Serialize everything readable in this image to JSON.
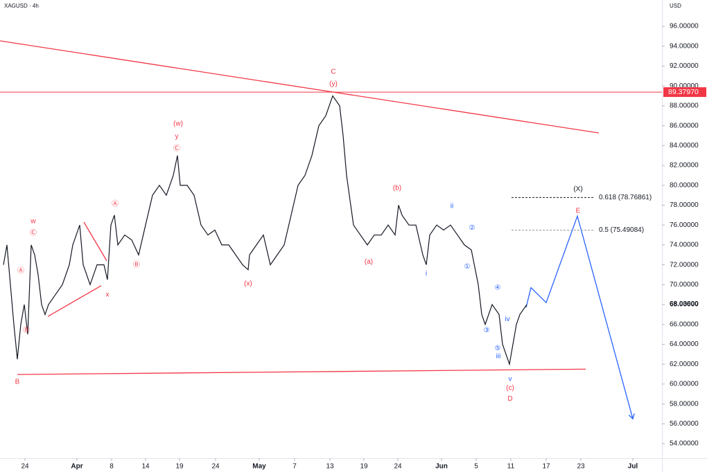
{
  "chart_data": {
    "type": "line",
    "title": "XAGUSD · 4h",
    "currency": "USD",
    "color": "#131722",
    "x": [
      0.5,
      1,
      1.5,
      2,
      2.5,
      3,
      3.5,
      4,
      4.5,
      5,
      5.5,
      6,
      6.5,
      7,
      8,
      9,
      10,
      10.5,
      11,
      11.5,
      12,
      12.5,
      13,
      14,
      15,
      15.5,
      16,
      16.5,
      17,
      18,
      19,
      20,
      21,
      22,
      23,
      24,
      25,
      25.6,
      26,
      27,
      28,
      29,
      30,
      31,
      32,
      33,
      34,
      35,
      35.8,
      36,
      37,
      38,
      39,
      40,
      41,
      42,
      43,
      44,
      45,
      46,
      47,
      48,
      49,
      49.5,
      50,
      51,
      52,
      53,
      54,
      55,
      56,
      57,
      57.5,
      58,
      59,
      60,
      61,
      61.5,
      62,
      63,
      64,
      65,
      66,
      67,
      68,
      69,
      69.5,
      70,
      71,
      72,
      72.5,
      73,
      73.5,
      74,
      74.5,
      75,
      76
    ],
    "values": [
      72,
      74,
      70,
      66,
      62.5,
      66,
      68,
      65,
      74,
      73,
      71,
      68,
      67,
      68,
      69,
      70,
      72,
      74,
      75,
      76,
      72,
      71,
      70,
      72,
      72,
      70.5,
      76,
      77,
      74,
      75,
      74.5,
      73,
      76,
      79,
      80,
      79,
      81,
      83,
      80,
      80,
      79,
      76,
      75,
      75.5,
      74,
      74,
      73,
      72,
      71.5,
      73,
      74,
      75,
      72,
      73,
      74,
      77,
      80,
      81,
      83,
      86,
      87,
      89,
      88,
      85,
      81,
      76,
      75,
      74,
      75,
      75,
      76,
      75,
      78,
      77,
      76,
      76,
      73,
      72,
      75,
      76,
      75.5,
      76,
      75,
      74,
      73.5,
      70,
      67,
      66,
      68,
      67,
      64,
      63,
      62,
      64,
      66,
      67,
      68
    ],
    "xlim": [
      0,
      95.5
    ],
    "ylim": [
      52.54,
      98.65
    ],
    "xticks": [
      {
        "value": 3.6,
        "label": "24"
      },
      {
        "value": 11.1,
        "label": "Apr"
      },
      {
        "value": 16.1,
        "label": "8"
      },
      {
        "value": 21.0,
        "label": "14"
      },
      {
        "value": 25.9,
        "label": "19"
      },
      {
        "value": 31.1,
        "label": "24"
      },
      {
        "value": 37.4,
        "label": "May"
      },
      {
        "value": 42.5,
        "label": "7"
      },
      {
        "value": 47.6,
        "label": "13"
      },
      {
        "value": 52.5,
        "label": "19"
      },
      {
        "value": 57.4,
        "label": "24"
      },
      {
        "value": 63.7,
        "label": "Jun"
      },
      {
        "value": 68.7,
        "label": "5"
      },
      {
        "value": 73.7,
        "label": "11"
      },
      {
        "value": 78.8,
        "label": "17"
      },
      {
        "value": 83.8,
        "label": "23"
      },
      {
        "value": 91.3,
        "label": "Jul"
      }
    ],
    "yticks": [
      {
        "value": 54,
        "label": "54.00000"
      },
      {
        "value": 56,
        "label": "56.00000"
      },
      {
        "value": 58,
        "label": "58.00000"
      },
      {
        "value": 60,
        "label": "60.00000"
      },
      {
        "value": 62,
        "label": "62.00000"
      },
      {
        "value": 64,
        "label": "64.00000"
      },
      {
        "value": 66,
        "label": "66.00000"
      },
      {
        "value": 68,
        "label": "68.00000"
      },
      {
        "value": 70,
        "label": "70.00000"
      },
      {
        "value": 72,
        "label": "72.00000"
      },
      {
        "value": 74,
        "label": "74.00000"
      },
      {
        "value": 76,
        "label": "76.00000"
      },
      {
        "value": 78,
        "label": "78.00000"
      },
      {
        "value": 80,
        "label": "80.00000"
      },
      {
        "value": 82,
        "label": "82.00000"
      },
      {
        "value": 84,
        "label": "84.00000"
      },
      {
        "value": 86,
        "label": "86.00000"
      },
      {
        "value": 88,
        "label": "88.00000"
      },
      {
        "value": 90,
        "label": "90.00000"
      },
      {
        "value": 92,
        "label": "92.00000"
      },
      {
        "value": 94,
        "label": "94.00000"
      },
      {
        "value": 96,
        "label": "96.00000"
      }
    ],
    "last_price": {
      "value": 68.036,
      "label": "68.03600"
    },
    "level": {
      "value": 89.3797,
      "label": "89.37970",
      "color": "#f23645"
    },
    "fib_levels": [
      {
        "value": 78.76861,
        "label": "0.618 (78.76861)",
        "x": [
          73.8,
          85.6
        ],
        "color": "#131722"
      },
      {
        "value": 75.49084,
        "label": "0.5 (75.49084)",
        "x": [
          73.8,
          85.6
        ],
        "color": "#9598a1"
      }
    ],
    "trendlines": [
      {
        "x": [
          0,
          86.4
        ],
        "y": [
          94.54,
          85.27
        ],
        "color": "#f23645"
      },
      {
        "x": [
          2.5,
          84.5
        ],
        "y": [
          60.96,
          61.5
        ],
        "color": "#f23645"
      },
      {
        "x": [
          6.9,
          14.6
        ],
        "y": [
          66.8,
          69.9
        ],
        "color": "#f23645"
      },
      {
        "x": [
          12.1,
          15.4
        ],
        "y": [
          76.3,
          72.4
        ],
        "color": "#f23645"
      },
      {
        "x": [
          75.9,
          76.6,
          78.8,
          83.3,
          91.3
        ],
        "y": [
          67.7,
          69.7,
          68.2,
          76.9,
          56.5
        ],
        "color": "#2962ff"
      }
    ],
    "annotations": [
      {
        "text": "w",
        "x": 4.8,
        "y": 76.36,
        "color": "#f23645"
      },
      {
        "text": "Ⓒ",
        "x": 4.8,
        "y": 75.2,
        "color": "#f23645"
      },
      {
        "text": "Ⓐ",
        "x": 3.0,
        "y": 71.4,
        "color": "#f23645"
      },
      {
        "text": "Ⓑ",
        "x": 3.8,
        "y": 65.4,
        "color": "#f23645"
      },
      {
        "text": "B",
        "x": 2.5,
        "y": 60.2,
        "color": "#f23645"
      },
      {
        "text": "x",
        "x": 15.5,
        "y": 69.0,
        "color": "#f23645"
      },
      {
        "text": "Ⓐ",
        "x": 16.6,
        "y": 78.1,
        "color": "#f23645"
      },
      {
        "text": "Ⓑ",
        "x": 19.7,
        "y": 72.0,
        "color": "#f23645"
      },
      {
        "text": "(w)",
        "x": 25.7,
        "y": 86.2,
        "color": "#f23645"
      },
      {
        "text": "y",
        "x": 25.5,
        "y": 84.9,
        "color": "#f23645"
      },
      {
        "text": "Ⓒ",
        "x": 25.5,
        "y": 83.7,
        "color": "#f23645"
      },
      {
        "text": "(x)",
        "x": 35.8,
        "y": 70.1,
        "color": "#f23645"
      },
      {
        "text": "C",
        "x": 48.1,
        "y": 91.4,
        "color": "#f23645"
      },
      {
        "text": "(y)",
        "x": 48.1,
        "y": 90.2,
        "color": "#f23645"
      },
      {
        "text": "(b)",
        "x": 57.3,
        "y": 79.7,
        "color": "#f23645"
      },
      {
        "text": "(a)",
        "x": 53.2,
        "y": 72.3,
        "color": "#f23645"
      },
      {
        "text": "(c)",
        "x": 73.6,
        "y": 59.6,
        "color": "#f23645"
      },
      {
        "text": "D",
        "x": 73.6,
        "y": 58.5,
        "color": "#f23645"
      },
      {
        "text": "E",
        "x": 83.4,
        "y": 77.4,
        "color": "#f23645"
      },
      {
        "text": "ii",
        "x": 65.2,
        "y": 77.9,
        "color": "#2962ff"
      },
      {
        "text": "②",
        "x": 68.1,
        "y": 75.7,
        "color": "#2962ff"
      },
      {
        "text": "①",
        "x": 67.4,
        "y": 71.8,
        "color": "#2962ff"
      },
      {
        "text": "i",
        "x": 61.5,
        "y": 71.1,
        "color": "#2962ff"
      },
      {
        "text": "④",
        "x": 71.8,
        "y": 69.7,
        "color": "#2962ff"
      },
      {
        "text": "③",
        "x": 70.2,
        "y": 65.4,
        "color": "#2962ff"
      },
      {
        "text": "iv",
        "x": 73.2,
        "y": 66.5,
        "color": "#2962ff"
      },
      {
        "text": "⑤",
        "x": 71.8,
        "y": 63.6,
        "color": "#2962ff"
      },
      {
        "text": "iii",
        "x": 71.9,
        "y": 62.8,
        "color": "#2962ff"
      },
      {
        "text": "v",
        "x": 73.6,
        "y": 60.5,
        "color": "#2962ff"
      },
      {
        "text": "(X)",
        "x": 83.4,
        "y": 79.6,
        "color": "#131722"
      }
    ]
  }
}
